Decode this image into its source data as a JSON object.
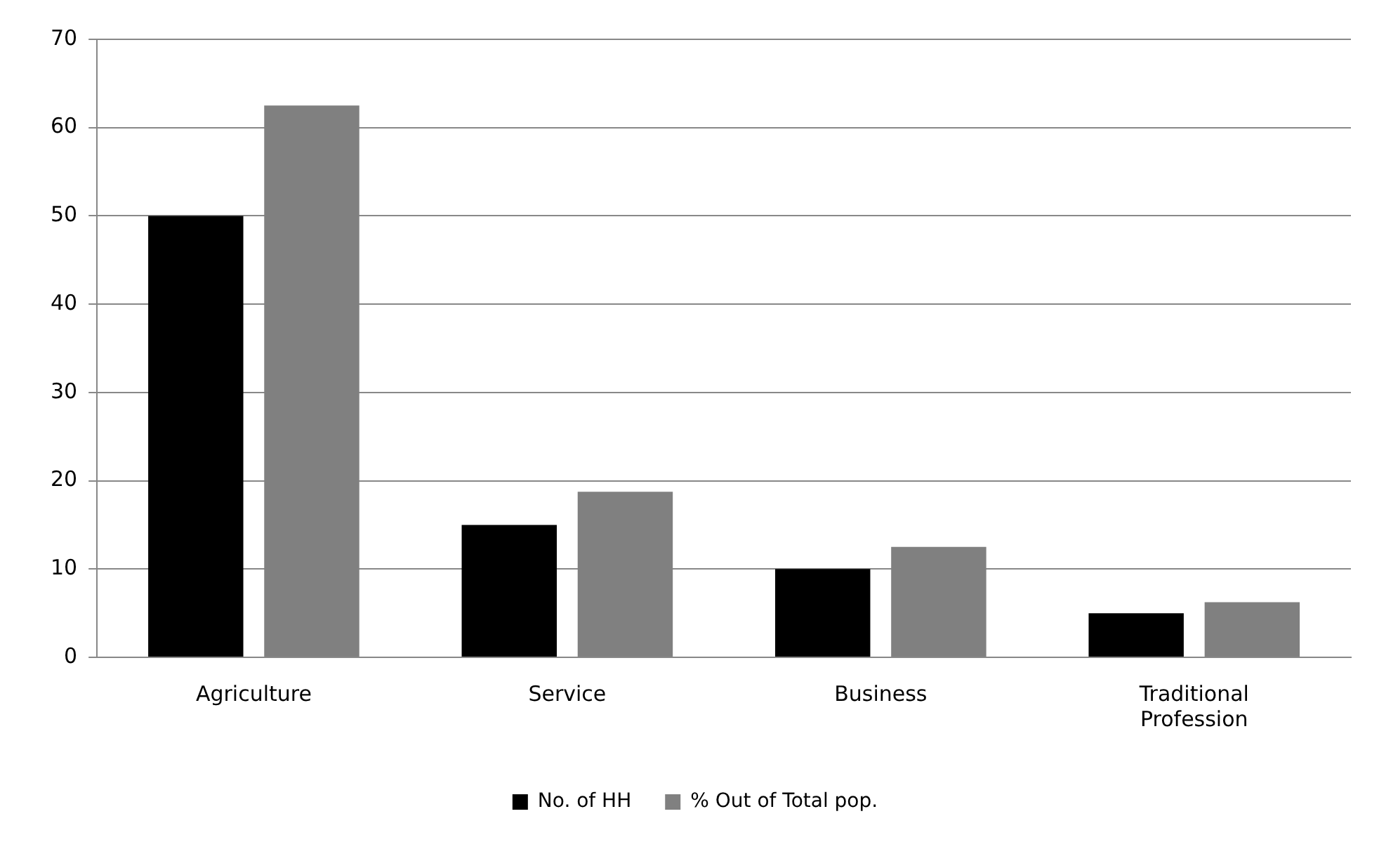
{
  "chart_data": {
    "type": "bar",
    "categories": [
      "Agriculture",
      "Service",
      "Business",
      "Traditional Profession"
    ],
    "series": [
      {
        "name": "No. of HH",
        "color": "#000000",
        "values": [
          50,
          15,
          10,
          5
        ]
      },
      {
        "name": "% Out of Total pop.",
        "color": "#808080",
        "values": [
          62.5,
          18.75,
          12.5,
          6.25
        ]
      }
    ],
    "ylim": [
      0,
      70
    ],
    "yticks": [
      0,
      10,
      20,
      30,
      40,
      50,
      60,
      70
    ],
    "grid": "y",
    "legend": "bottom"
  }
}
